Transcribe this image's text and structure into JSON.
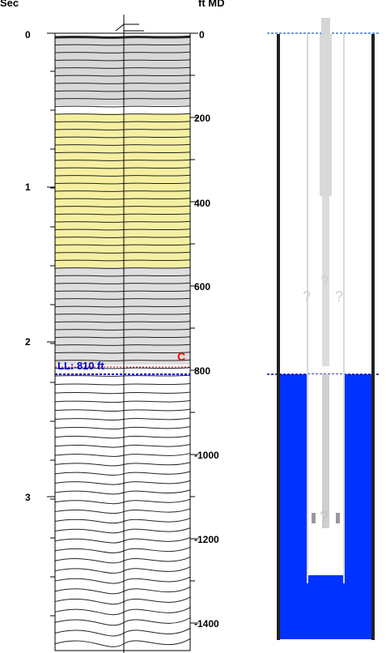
{
  "axes": {
    "left_unit": "Sec",
    "right_unit": "ft MD",
    "time_ticks": [
      "0",
      "1",
      "2",
      "3"
    ],
    "depth_ticks": [
      "0",
      "200",
      "400",
      "600",
      "800",
      "-1000",
      "-1200",
      "-1400"
    ]
  },
  "marker": {
    "label": "LL: 810 ft",
    "flag": "C",
    "flag_color": "#ff0000",
    "line_color": "#0000cc"
  },
  "wellbore": {
    "question_marks": [
      "?",
      "?",
      "?",
      "?"
    ],
    "fluid_color": "#0033ff"
  },
  "colors": {
    "highlight_band": "#f5f0a0"
  },
  "chart_data": {
    "type": "line",
    "title": "",
    "xlabel": "",
    "ylabel": "Sec",
    "y2label": "ft MD",
    "annotations": [
      "LL: 810 ft",
      "C"
    ],
    "series": [
      {
        "values": []
      }
    ]
  }
}
